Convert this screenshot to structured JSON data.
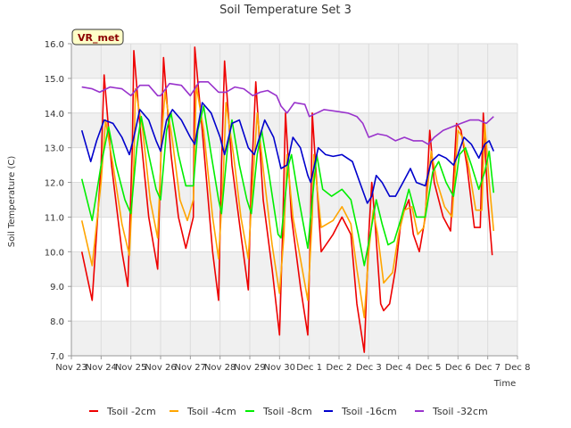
{
  "chart_data": {
    "type": "line",
    "title": "Soil Temperature Set 3",
    "xlabel": "Time",
    "ylabel": "Soil Temperature (C)",
    "station_label": "VR_met",
    "x_tick_labels": [
      "Nov 23",
      "Nov 24",
      "Nov 25",
      "Nov 26",
      "Nov 27",
      "Nov 28",
      "Nov 29",
      "Nov 30",
      "Dec 1",
      "Dec 2",
      "Dec 3",
      "Dec 4",
      "Dec 5",
      "Dec 6",
      "Dec 7",
      "Dec 8"
    ],
    "xlim": [
      0,
      15
    ],
    "ylim": [
      7.0,
      16.0
    ],
    "y_ticks": [
      "7.0",
      "8.0",
      "9.0",
      "10.0",
      "11.0",
      "12.0",
      "13.0",
      "14.0",
      "15.0",
      "16.0"
    ],
    "grid": true,
    "legend_position": "bottom",
    "series": [
      {
        "name": "Tsoil -2cm",
        "color": "#ee0000",
        "points": [
          [
            0.35,
            10.0
          ],
          [
            0.7,
            8.6
          ],
          [
            1.0,
            12.5
          ],
          [
            1.1,
            15.1
          ],
          [
            1.35,
            12.5
          ],
          [
            1.7,
            10.0
          ],
          [
            1.9,
            9.0
          ],
          [
            2.05,
            13.0
          ],
          [
            2.1,
            15.8
          ],
          [
            2.35,
            13.2
          ],
          [
            2.6,
            11.0
          ],
          [
            2.9,
            9.5
          ],
          [
            3.05,
            14.0
          ],
          [
            3.1,
            15.6
          ],
          [
            3.35,
            12.8
          ],
          [
            3.6,
            11.0
          ],
          [
            3.85,
            10.1
          ],
          [
            4.1,
            11.0
          ],
          [
            4.15,
            15.9
          ],
          [
            4.4,
            13.5
          ],
          [
            4.75,
            10.0
          ],
          [
            4.95,
            8.6
          ],
          [
            5.05,
            12.5
          ],
          [
            5.15,
            15.5
          ],
          [
            5.4,
            12.5
          ],
          [
            5.7,
            10.5
          ],
          [
            5.95,
            8.9
          ],
          [
            6.05,
            12.0
          ],
          [
            6.2,
            14.9
          ],
          [
            6.45,
            11.5
          ],
          [
            6.75,
            9.5
          ],
          [
            7.0,
            7.6
          ],
          [
            7.1,
            10.5
          ],
          [
            7.2,
            14.0
          ],
          [
            7.4,
            11.0
          ],
          [
            7.7,
            9.0
          ],
          [
            7.95,
            7.6
          ],
          [
            8.05,
            11.0
          ],
          [
            8.1,
            14.0
          ],
          [
            8.4,
            10.0
          ],
          [
            8.8,
            10.5
          ],
          [
            9.1,
            11.0
          ],
          [
            9.4,
            10.5
          ],
          [
            9.6,
            8.5
          ],
          [
            9.85,
            7.1
          ],
          [
            10.0,
            10.5
          ],
          [
            10.1,
            12.0
          ],
          [
            10.2,
            11.0
          ],
          [
            10.4,
            8.5
          ],
          [
            10.5,
            8.3
          ],
          [
            10.7,
            8.5
          ],
          [
            10.9,
            9.5
          ],
          [
            11.1,
            11.0
          ],
          [
            11.35,
            11.5
          ],
          [
            11.5,
            10.5
          ],
          [
            11.7,
            10.0
          ],
          [
            11.9,
            11.0
          ],
          [
            12.05,
            13.5
          ],
          [
            12.2,
            12.0
          ],
          [
            12.5,
            11.0
          ],
          [
            12.75,
            10.6
          ],
          [
            12.95,
            13.7
          ],
          [
            13.1,
            13.5
          ],
          [
            13.3,
            12.5
          ],
          [
            13.55,
            10.7
          ],
          [
            13.75,
            10.7
          ],
          [
            13.85,
            14.0
          ],
          [
            14.0,
            11.5
          ],
          [
            14.15,
            9.9
          ]
        ]
      },
      {
        "name": "Tsoil -4cm",
        "color": "#ffa500",
        "points": [
          [
            0.35,
            10.9
          ],
          [
            0.7,
            9.6
          ],
          [
            1.0,
            12.0
          ],
          [
            1.15,
            13.8
          ],
          [
            1.4,
            12.5
          ],
          [
            1.7,
            10.8
          ],
          [
            1.95,
            9.9
          ],
          [
            2.1,
            12.5
          ],
          [
            2.15,
            14.7
          ],
          [
            2.4,
            13.5
          ],
          [
            2.65,
            11.5
          ],
          [
            2.9,
            10.4
          ],
          [
            3.05,
            13.5
          ],
          [
            3.15,
            14.6
          ],
          [
            3.4,
            13.2
          ],
          [
            3.65,
            11.5
          ],
          [
            3.9,
            10.9
          ],
          [
            4.1,
            11.5
          ],
          [
            4.2,
            14.8
          ],
          [
            4.45,
            13.5
          ],
          [
            4.75,
            11.0
          ],
          [
            4.95,
            9.8
          ],
          [
            5.1,
            12.0
          ],
          [
            5.2,
            14.3
          ],
          [
            5.45,
            12.8
          ],
          [
            5.7,
            11.0
          ],
          [
            5.95,
            9.8
          ],
          [
            6.1,
            12.0
          ],
          [
            6.25,
            14.0
          ],
          [
            6.5,
            12.0
          ],
          [
            6.75,
            10.2
          ],
          [
            7.0,
            8.8
          ],
          [
            7.15,
            10.5
          ],
          [
            7.25,
            12.8
          ],
          [
            7.45,
            11.0
          ],
          [
            7.7,
            9.8
          ],
          [
            7.95,
            8.6
          ],
          [
            8.1,
            11.0
          ],
          [
            8.15,
            12.8
          ],
          [
            8.4,
            10.7
          ],
          [
            8.8,
            10.9
          ],
          [
            9.1,
            11.3
          ],
          [
            9.4,
            10.8
          ],
          [
            9.6,
            9.5
          ],
          [
            9.85,
            8.1
          ],
          [
            10.0,
            10.0
          ],
          [
            10.15,
            11.2
          ],
          [
            10.3,
            10.5
          ],
          [
            10.5,
            9.1
          ],
          [
            10.8,
            9.4
          ],
          [
            11.0,
            10.5
          ],
          [
            11.2,
            11.2
          ],
          [
            11.45,
            11.3
          ],
          [
            11.65,
            10.5
          ],
          [
            11.85,
            10.7
          ],
          [
            12.1,
            12.9
          ],
          [
            12.3,
            12.0
          ],
          [
            12.55,
            11.3
          ],
          [
            12.8,
            11.0
          ],
          [
            13.0,
            13.5
          ],
          [
            13.15,
            13.3
          ],
          [
            13.35,
            12.5
          ],
          [
            13.6,
            11.2
          ],
          [
            13.8,
            11.2
          ],
          [
            13.9,
            13.7
          ],
          [
            14.05,
            12.0
          ],
          [
            14.2,
            10.6
          ]
        ]
      },
      {
        "name": "Tsoil -8cm",
        "color": "#00ee00",
        "points": [
          [
            0.35,
            12.1
          ],
          [
            0.7,
            10.9
          ],
          [
            1.0,
            12.5
          ],
          [
            1.25,
            13.6
          ],
          [
            1.5,
            12.5
          ],
          [
            1.8,
            11.5
          ],
          [
            2.0,
            11.1
          ],
          [
            2.2,
            13.0
          ],
          [
            2.35,
            13.9
          ],
          [
            2.6,
            12.8
          ],
          [
            2.85,
            11.8
          ],
          [
            3.0,
            11.5
          ],
          [
            3.2,
            13.5
          ],
          [
            3.35,
            14.0
          ],
          [
            3.6,
            12.8
          ],
          [
            3.85,
            11.9
          ],
          [
            4.1,
            11.9
          ],
          [
            4.25,
            13.5
          ],
          [
            4.45,
            14.2
          ],
          [
            4.7,
            12.8
          ],
          [
            4.95,
            11.5
          ],
          [
            5.05,
            11.1
          ],
          [
            5.25,
            13.0
          ],
          [
            5.4,
            13.8
          ],
          [
            5.65,
            12.5
          ],
          [
            5.9,
            11.5
          ],
          [
            6.05,
            11.1
          ],
          [
            6.25,
            12.8
          ],
          [
            6.4,
            13.5
          ],
          [
            6.65,
            12.2
          ],
          [
            6.95,
            10.5
          ],
          [
            7.05,
            10.4
          ],
          [
            7.3,
            12.5
          ],
          [
            7.4,
            12.8
          ],
          [
            7.65,
            11.5
          ],
          [
            7.95,
            10.1
          ],
          [
            8.1,
            11.5
          ],
          [
            8.25,
            12.8
          ],
          [
            8.45,
            11.8
          ],
          [
            8.75,
            11.6
          ],
          [
            9.1,
            11.8
          ],
          [
            9.4,
            11.5
          ],
          [
            9.65,
            10.5
          ],
          [
            9.85,
            9.6
          ],
          [
            10.05,
            10.5
          ],
          [
            10.25,
            11.5
          ],
          [
            10.45,
            10.8
          ],
          [
            10.65,
            10.2
          ],
          [
            10.85,
            10.3
          ],
          [
            11.1,
            11.0
          ],
          [
            11.35,
            11.8
          ],
          [
            11.6,
            11.0
          ],
          [
            11.9,
            11.0
          ],
          [
            12.15,
            12.3
          ],
          [
            12.35,
            12.6
          ],
          [
            12.6,
            12.0
          ],
          [
            12.85,
            11.6
          ],
          [
            13.05,
            12.8
          ],
          [
            13.25,
            13.0
          ],
          [
            13.45,
            12.5
          ],
          [
            13.7,
            11.8
          ],
          [
            13.9,
            12.3
          ],
          [
            14.05,
            12.9
          ],
          [
            14.2,
            11.7
          ]
        ]
      },
      {
        "name": "Tsoil -16cm",
        "color": "#0000cc",
        "points": [
          [
            0.35,
            13.5
          ],
          [
            0.65,
            12.6
          ],
          [
            0.85,
            13.2
          ],
          [
            1.1,
            13.8
          ],
          [
            1.4,
            13.7
          ],
          [
            1.7,
            13.3
          ],
          [
            1.95,
            12.8
          ],
          [
            2.1,
            13.3
          ],
          [
            2.3,
            14.1
          ],
          [
            2.6,
            13.8
          ],
          [
            2.85,
            13.2
          ],
          [
            3.0,
            12.9
          ],
          [
            3.2,
            13.8
          ],
          [
            3.4,
            14.1
          ],
          [
            3.7,
            13.8
          ],
          [
            4.0,
            13.3
          ],
          [
            4.15,
            13.1
          ],
          [
            4.4,
            14.3
          ],
          [
            4.7,
            14.0
          ],
          [
            5.0,
            13.3
          ],
          [
            5.15,
            12.8
          ],
          [
            5.4,
            13.7
          ],
          [
            5.65,
            13.8
          ],
          [
            5.95,
            13.0
          ],
          [
            6.15,
            12.8
          ],
          [
            6.5,
            13.8
          ],
          [
            6.8,
            13.3
          ],
          [
            7.05,
            12.4
          ],
          [
            7.25,
            12.5
          ],
          [
            7.45,
            13.3
          ],
          [
            7.7,
            13.0
          ],
          [
            7.95,
            12.2
          ],
          [
            8.05,
            12.0
          ],
          [
            8.3,
            13.0
          ],
          [
            8.55,
            12.8
          ],
          [
            8.8,
            12.75
          ],
          [
            9.1,
            12.8
          ],
          [
            9.45,
            12.6
          ],
          [
            9.7,
            12.0
          ],
          [
            9.95,
            11.4
          ],
          [
            10.1,
            11.6
          ],
          [
            10.25,
            12.2
          ],
          [
            10.45,
            12.0
          ],
          [
            10.7,
            11.6
          ],
          [
            10.9,
            11.6
          ],
          [
            11.15,
            12.0
          ],
          [
            11.4,
            12.4
          ],
          [
            11.6,
            12.0
          ],
          [
            11.9,
            11.9
          ],
          [
            12.1,
            12.6
          ],
          [
            12.35,
            12.8
          ],
          [
            12.6,
            12.7
          ],
          [
            12.85,
            12.5
          ],
          [
            13.0,
            12.8
          ],
          [
            13.2,
            13.3
          ],
          [
            13.45,
            13.1
          ],
          [
            13.7,
            12.7
          ],
          [
            13.9,
            13.1
          ],
          [
            14.05,
            13.2
          ],
          [
            14.2,
            12.9
          ]
        ]
      },
      {
        "name": "Tsoil -32cm",
        "color": "#9933cc",
        "points": [
          [
            0.35,
            14.75
          ],
          [
            0.7,
            14.7
          ],
          [
            0.95,
            14.6
          ],
          [
            1.3,
            14.75
          ],
          [
            1.7,
            14.7
          ],
          [
            2.0,
            14.5
          ],
          [
            2.3,
            14.8
          ],
          [
            2.6,
            14.8
          ],
          [
            2.9,
            14.5
          ],
          [
            3.0,
            14.5
          ],
          [
            3.3,
            14.85
          ],
          [
            3.7,
            14.8
          ],
          [
            4.0,
            14.5
          ],
          [
            4.3,
            14.9
          ],
          [
            4.6,
            14.9
          ],
          [
            4.95,
            14.6
          ],
          [
            5.2,
            14.6
          ],
          [
            5.5,
            14.75
          ],
          [
            5.8,
            14.7
          ],
          [
            6.1,
            14.5
          ],
          [
            6.35,
            14.6
          ],
          [
            6.6,
            14.65
          ],
          [
            6.9,
            14.5
          ],
          [
            7.05,
            14.2
          ],
          [
            7.25,
            14.0
          ],
          [
            7.5,
            14.3
          ],
          [
            7.85,
            14.25
          ],
          [
            8.0,
            13.9
          ],
          [
            8.25,
            14.0
          ],
          [
            8.5,
            14.1
          ],
          [
            8.9,
            14.05
          ],
          [
            9.3,
            14.0
          ],
          [
            9.6,
            13.9
          ],
          [
            9.8,
            13.7
          ],
          [
            10.0,
            13.3
          ],
          [
            10.3,
            13.4
          ],
          [
            10.6,
            13.35
          ],
          [
            10.9,
            13.2
          ],
          [
            11.2,
            13.3
          ],
          [
            11.5,
            13.2
          ],
          [
            11.8,
            13.2
          ],
          [
            12.0,
            13.1
          ],
          [
            12.2,
            13.3
          ],
          [
            12.5,
            13.5
          ],
          [
            12.8,
            13.6
          ],
          [
            13.1,
            13.7
          ],
          [
            13.4,
            13.8
          ],
          [
            13.7,
            13.8
          ],
          [
            13.95,
            13.7
          ],
          [
            14.2,
            13.9
          ]
        ]
      }
    ]
  }
}
